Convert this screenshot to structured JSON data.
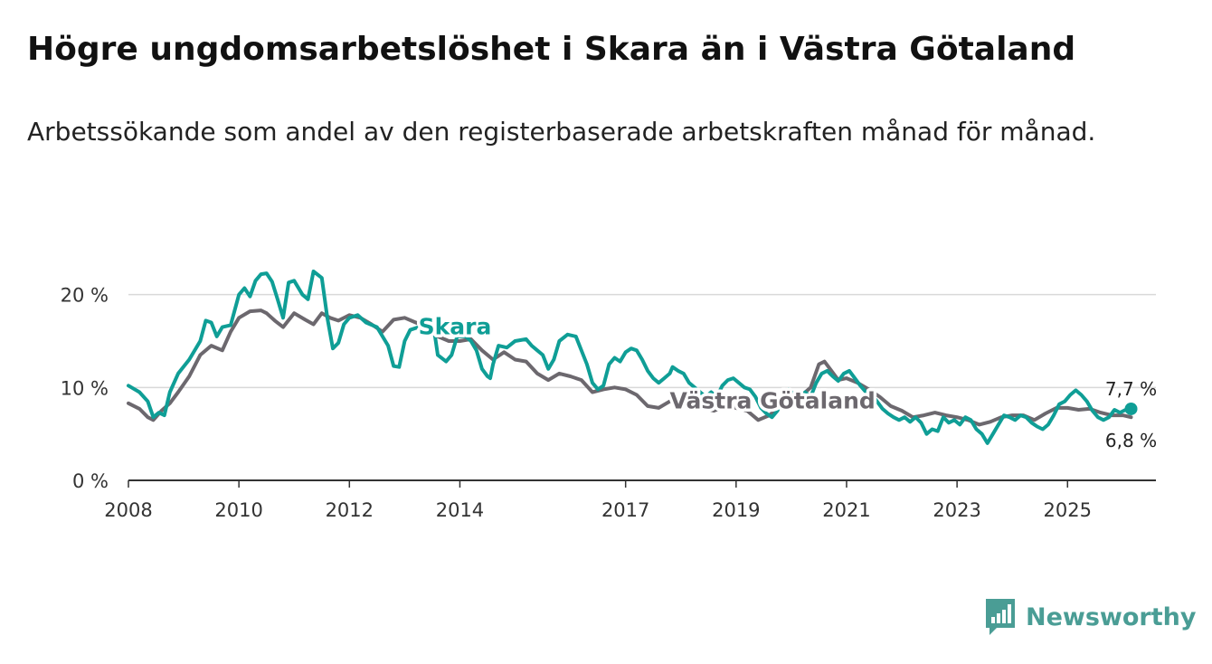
{
  "title": "Högre ungdomsarbetslöshet i Skara än i Västra Götaland",
  "subtitle": "Arbetssökande som andel av den registerbaserade arbetskraften månad för månad.",
  "brand": {
    "name": "Newsworthy"
  },
  "colors": {
    "skara": "#0f9e96",
    "vg": "#6c686e",
    "grid": "#d9d9d9",
    "axis": "#333333"
  },
  "chart_data": {
    "type": "line",
    "title": "Högre ungdomsarbetslöshet i Skara än i Västra Götaland",
    "xlabel": "",
    "ylabel": "",
    "xlim": [
      2008,
      2026.6
    ],
    "ylim": [
      0,
      22.5
    ],
    "x_ticks": [
      2008,
      2010,
      2012,
      2014,
      2017,
      2019,
      2021,
      2023,
      2025
    ],
    "y_ticks": [
      {
        "value": 0,
        "label": "0 %"
      },
      {
        "value": 10,
        "label": "10 %"
      },
      {
        "value": 20,
        "label": "20 %"
      }
    ],
    "series": [
      {
        "name": "Skara",
        "end_label": "7,7 %",
        "points": [
          [
            2008.0,
            10.2
          ],
          [
            2008.2,
            9.5
          ],
          [
            2008.35,
            8.5
          ],
          [
            2008.45,
            6.8
          ],
          [
            2008.55,
            7.3
          ],
          [
            2008.65,
            7.0
          ],
          [
            2008.75,
            9.5
          ],
          [
            2008.9,
            11.5
          ],
          [
            2009.1,
            13.0
          ],
          [
            2009.3,
            15.0
          ],
          [
            2009.4,
            17.2
          ],
          [
            2009.5,
            17.0
          ],
          [
            2009.6,
            15.5
          ],
          [
            2009.7,
            16.5
          ],
          [
            2009.85,
            16.7
          ],
          [
            2010.0,
            20.0
          ],
          [
            2010.1,
            20.7
          ],
          [
            2010.2,
            19.8
          ],
          [
            2010.3,
            21.5
          ],
          [
            2010.4,
            22.2
          ],
          [
            2010.5,
            22.3
          ],
          [
            2010.6,
            21.4
          ],
          [
            2010.7,
            19.5
          ],
          [
            2010.8,
            17.5
          ],
          [
            2010.9,
            21.3
          ],
          [
            2011.0,
            21.5
          ],
          [
            2011.15,
            20.0
          ],
          [
            2011.25,
            19.5
          ],
          [
            2011.35,
            22.5
          ],
          [
            2011.5,
            21.8
          ],
          [
            2011.6,
            17.5
          ],
          [
            2011.7,
            14.2
          ],
          [
            2011.8,
            14.8
          ],
          [
            2011.9,
            16.8
          ],
          [
            2012.0,
            17.5
          ],
          [
            2012.15,
            17.8
          ],
          [
            2012.3,
            17.0
          ],
          [
            2012.5,
            16.5
          ],
          [
            2012.7,
            14.5
          ],
          [
            2012.8,
            12.3
          ],
          [
            2012.9,
            12.2
          ],
          [
            2013.0,
            15.0
          ],
          [
            2013.1,
            16.2
          ],
          [
            2013.25,
            16.5
          ],
          [
            2013.4,
            16.0
          ],
          [
            2013.5,
            16.3
          ],
          [
            2013.55,
            15.5
          ],
          [
            2013.6,
            13.5
          ],
          [
            2013.75,
            12.8
          ],
          [
            2013.85,
            13.5
          ],
          [
            2013.95,
            15.5
          ],
          [
            2014.1,
            15.5
          ],
          [
            2014.2,
            15.0
          ],
          [
            2014.3,
            14.0
          ],
          [
            2014.4,
            12.0
          ],
          [
            2014.5,
            11.2
          ],
          [
            2014.55,
            11.0
          ],
          [
            2014.6,
            12.5
          ],
          [
            2014.7,
            14.5
          ],
          [
            2014.85,
            14.3
          ],
          [
            2015.0,
            15.0
          ],
          [
            2015.2,
            15.2
          ],
          [
            2015.3,
            14.5
          ],
          [
            2015.4,
            14.0
          ],
          [
            2015.5,
            13.5
          ],
          [
            2015.6,
            12.0
          ],
          [
            2015.7,
            13.0
          ],
          [
            2015.8,
            15.0
          ],
          [
            2015.95,
            15.7
          ],
          [
            2016.1,
            15.5
          ],
          [
            2016.2,
            14.0
          ],
          [
            2016.3,
            12.5
          ],
          [
            2016.4,
            10.5
          ],
          [
            2016.5,
            9.8
          ],
          [
            2016.6,
            10.2
          ],
          [
            2016.7,
            12.5
          ],
          [
            2016.8,
            13.2
          ],
          [
            2016.9,
            12.8
          ],
          [
            2017.0,
            13.8
          ],
          [
            2017.1,
            14.2
          ],
          [
            2017.2,
            14.0
          ],
          [
            2017.3,
            13.0
          ],
          [
            2017.4,
            11.8
          ],
          [
            2017.5,
            11.0
          ],
          [
            2017.6,
            10.5
          ],
          [
            2017.7,
            11.0
          ],
          [
            2017.8,
            11.5
          ],
          [
            2017.85,
            12.2
          ],
          [
            2017.95,
            11.8
          ],
          [
            2018.05,
            11.5
          ],
          [
            2018.15,
            10.5
          ],
          [
            2018.25,
            10.0
          ],
          [
            2018.35,
            9.5
          ],
          [
            2018.45,
            9.0
          ],
          [
            2018.55,
            9.5
          ],
          [
            2018.65,
            9.0
          ],
          [
            2018.75,
            10.2
          ],
          [
            2018.85,
            10.8
          ],
          [
            2018.95,
            11.0
          ],
          [
            2019.05,
            10.5
          ],
          [
            2019.15,
            10.0
          ],
          [
            2019.25,
            9.8
          ],
          [
            2019.35,
            9.0
          ],
          [
            2019.45,
            7.8
          ],
          [
            2019.55,
            7.2
          ],
          [
            2019.65,
            6.8
          ],
          [
            2019.75,
            7.5
          ],
          [
            2019.85,
            9.2
          ],
          [
            2019.95,
            9.8
          ],
          [
            2020.05,
            9.3
          ],
          [
            2020.15,
            8.8
          ],
          [
            2020.25,
            9.5
          ],
          [
            2020.35,
            9.0
          ],
          [
            2020.45,
            10.5
          ],
          [
            2020.55,
            11.5
          ],
          [
            2020.65,
            11.8
          ],
          [
            2020.75,
            11.2
          ],
          [
            2020.85,
            10.7
          ],
          [
            2020.95,
            11.5
          ],
          [
            2021.05,
            11.8
          ],
          [
            2021.15,
            11.0
          ],
          [
            2021.25,
            10.2
          ],
          [
            2021.35,
            9.5
          ],
          [
            2021.45,
            9.3
          ],
          [
            2021.55,
            8.5
          ],
          [
            2021.65,
            7.7
          ],
          [
            2021.75,
            7.2
          ],
          [
            2021.85,
            6.8
          ],
          [
            2021.95,
            6.5
          ],
          [
            2022.05,
            6.8
          ],
          [
            2022.15,
            6.3
          ],
          [
            2022.25,
            6.8
          ],
          [
            2022.35,
            6.2
          ],
          [
            2022.45,
            5.0
          ],
          [
            2022.55,
            5.5
          ],
          [
            2022.65,
            5.3
          ],
          [
            2022.75,
            6.8
          ],
          [
            2022.85,
            6.2
          ],
          [
            2022.95,
            6.5
          ],
          [
            2023.05,
            6.0
          ],
          [
            2023.15,
            6.8
          ],
          [
            2023.25,
            6.5
          ],
          [
            2023.35,
            5.5
          ],
          [
            2023.45,
            5.0
          ],
          [
            2023.55,
            4.0
          ],
          [
            2023.65,
            5.0
          ],
          [
            2023.75,
            6.0
          ],
          [
            2023.85,
            7.0
          ],
          [
            2023.95,
            6.8
          ],
          [
            2024.05,
            6.5
          ],
          [
            2024.15,
            7.0
          ],
          [
            2024.25,
            6.8
          ],
          [
            2024.35,
            6.2
          ],
          [
            2024.45,
            5.8
          ],
          [
            2024.55,
            5.5
          ],
          [
            2024.65,
            6.0
          ],
          [
            2024.75,
            7.0
          ],
          [
            2024.85,
            8.2
          ],
          [
            2024.95,
            8.5
          ],
          [
            2025.05,
            9.2
          ],
          [
            2025.15,
            9.7
          ],
          [
            2025.25,
            9.2
          ],
          [
            2025.35,
            8.5
          ],
          [
            2025.45,
            7.5
          ],
          [
            2025.55,
            6.8
          ],
          [
            2025.65,
            6.5
          ],
          [
            2025.75,
            6.8
          ],
          [
            2025.85,
            7.6
          ],
          [
            2025.95,
            7.3
          ],
          [
            2026.05,
            7.6
          ],
          [
            2026.15,
            7.7
          ]
        ]
      },
      {
        "name": "Västra Götaland",
        "end_label": "6,8 %",
        "points": [
          [
            2008.0,
            8.3
          ],
          [
            2008.2,
            7.7
          ],
          [
            2008.35,
            6.8
          ],
          [
            2008.45,
            6.5
          ],
          [
            2008.6,
            7.5
          ],
          [
            2008.75,
            8.3
          ],
          [
            2008.9,
            9.5
          ],
          [
            2009.1,
            11.2
          ],
          [
            2009.3,
            13.5
          ],
          [
            2009.5,
            14.5
          ],
          [
            2009.7,
            14.0
          ],
          [
            2009.85,
            16.0
          ],
          [
            2010.0,
            17.5
          ],
          [
            2010.2,
            18.2
          ],
          [
            2010.4,
            18.3
          ],
          [
            2010.5,
            18.0
          ],
          [
            2010.65,
            17.2
          ],
          [
            2010.8,
            16.5
          ],
          [
            2011.0,
            18.0
          ],
          [
            2011.2,
            17.3
          ],
          [
            2011.35,
            16.8
          ],
          [
            2011.5,
            18.0
          ],
          [
            2011.65,
            17.5
          ],
          [
            2011.8,
            17.2
          ],
          [
            2012.0,
            17.8
          ],
          [
            2012.2,
            17.5
          ],
          [
            2012.4,
            16.8
          ],
          [
            2012.6,
            16.0
          ],
          [
            2012.8,
            17.3
          ],
          [
            2013.0,
            17.5
          ],
          [
            2013.2,
            17.0
          ],
          [
            2013.4,
            16.5
          ],
          [
            2013.6,
            15.5
          ],
          [
            2013.8,
            15.0
          ],
          [
            2014.0,
            15.0
          ],
          [
            2014.2,
            15.2
          ],
          [
            2014.4,
            14.0
          ],
          [
            2014.6,
            13.0
          ],
          [
            2014.8,
            13.8
          ],
          [
            2015.0,
            13.0
          ],
          [
            2015.2,
            12.8
          ],
          [
            2015.4,
            11.5
          ],
          [
            2015.6,
            10.8
          ],
          [
            2015.8,
            11.5
          ],
          [
            2016.0,
            11.2
          ],
          [
            2016.2,
            10.8
          ],
          [
            2016.4,
            9.5
          ],
          [
            2016.6,
            9.8
          ],
          [
            2016.8,
            10.0
          ],
          [
            2017.0,
            9.8
          ],
          [
            2017.2,
            9.2
          ],
          [
            2017.4,
            8.0
          ],
          [
            2017.6,
            7.8
          ],
          [
            2017.8,
            8.5
          ],
          [
            2018.0,
            8.5
          ],
          [
            2018.2,
            8.0
          ],
          [
            2018.4,
            7.8
          ],
          [
            2018.6,
            7.5
          ],
          [
            2018.8,
            8.0
          ],
          [
            2019.0,
            7.8
          ],
          [
            2019.2,
            7.5
          ],
          [
            2019.4,
            6.5
          ],
          [
            2019.6,
            7.0
          ],
          [
            2019.8,
            8.0
          ],
          [
            2020.0,
            9.0
          ],
          [
            2020.2,
            9.2
          ],
          [
            2020.35,
            10.0
          ],
          [
            2020.5,
            12.5
          ],
          [
            2020.6,
            12.8
          ],
          [
            2020.7,
            12.0
          ],
          [
            2020.85,
            10.8
          ],
          [
            2021.0,
            11.0
          ],
          [
            2021.2,
            10.5
          ],
          [
            2021.4,
            9.8
          ],
          [
            2021.6,
            9.0
          ],
          [
            2021.8,
            8.0
          ],
          [
            2022.0,
            7.5
          ],
          [
            2022.2,
            6.8
          ],
          [
            2022.4,
            7.0
          ],
          [
            2022.6,
            7.3
          ],
          [
            2022.8,
            7.0
          ],
          [
            2023.0,
            6.8
          ],
          [
            2023.2,
            6.5
          ],
          [
            2023.4,
            6.0
          ],
          [
            2023.6,
            6.3
          ],
          [
            2023.8,
            6.8
          ],
          [
            2024.0,
            7.0
          ],
          [
            2024.2,
            7.0
          ],
          [
            2024.4,
            6.5
          ],
          [
            2024.6,
            7.2
          ],
          [
            2024.8,
            7.8
          ],
          [
            2025.0,
            7.8
          ],
          [
            2025.2,
            7.6
          ],
          [
            2025.4,
            7.7
          ],
          [
            2025.6,
            7.3
          ],
          [
            2025.8,
            7.0
          ],
          [
            2026.0,
            7.0
          ],
          [
            2026.15,
            6.8
          ]
        ]
      }
    ],
    "annotations": [
      {
        "text": "Skara",
        "series": "Skara",
        "at_x": 2013.25,
        "color": "#0f9e96"
      },
      {
        "text": "Västra Götaland",
        "series": "Västra Götaland",
        "at_x": 2017.8,
        "color": "#6c686e"
      }
    ]
  }
}
